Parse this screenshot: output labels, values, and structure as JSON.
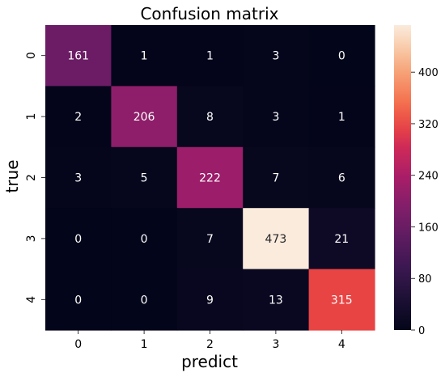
{
  "chart_data": {
    "type": "heatmap",
    "title": "Confusion matrix",
    "xlabel": "predict",
    "ylabel": "true",
    "x_categories": [
      "0",
      "1",
      "2",
      "3",
      "4"
    ],
    "y_categories": [
      "0",
      "1",
      "2",
      "3",
      "4"
    ],
    "values": [
      [
        161,
        1,
        1,
        3,
        0
      ],
      [
        2,
        206,
        8,
        3,
        1
      ],
      [
        3,
        5,
        222,
        7,
        6
      ],
      [
        0,
        0,
        7,
        473,
        21
      ],
      [
        0,
        0,
        9,
        13,
        315
      ]
    ],
    "colorbar": {
      "min": 0,
      "max": 473,
      "ticks": [
        0,
        80,
        160,
        240,
        320,
        400
      ],
      "colormap": "rocket"
    },
    "grid": false,
    "legend": "colorbar-right"
  }
}
